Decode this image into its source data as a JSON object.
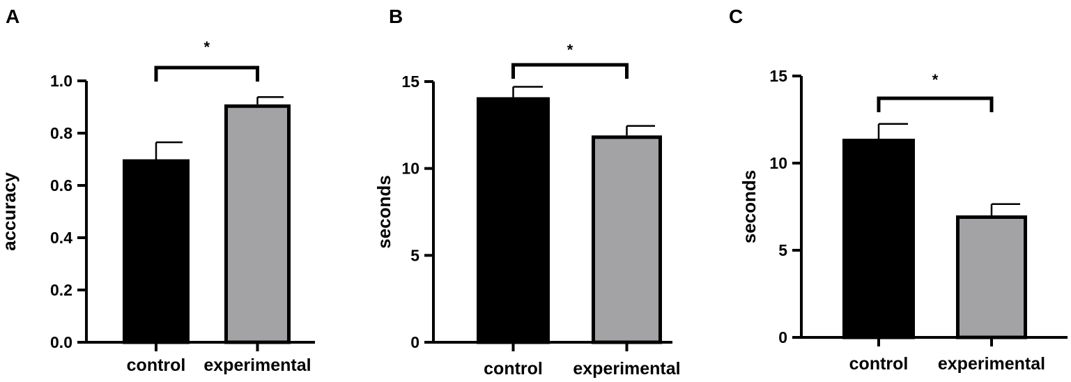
{
  "chart_data": [
    {
      "panel": "A",
      "type": "bar",
      "categories": [
        "control",
        "experimental"
      ],
      "values": [
        0.7,
        0.91
      ],
      "errors": [
        0.065,
        0.028
      ],
      "ylabel": "accuracy",
      "xlabel": "",
      "ylim": [
        0,
        1.0
      ],
      "yticks": [
        "0.0",
        "0.2",
        "0.4",
        "0.6",
        "0.8",
        "1.0"
      ],
      "bar_colors": [
        "#000000",
        "#a3a3a6"
      ],
      "significance": "*"
    },
    {
      "panel": "B",
      "type": "bar",
      "categories": [
        "control",
        "experimental"
      ],
      "values": [
        14.1,
        11.9
      ],
      "errors": [
        0.6,
        0.55
      ],
      "ylabel": "seconds",
      "xlabel": "",
      "ylim": [
        0,
        15
      ],
      "yticks": [
        "0",
        "5",
        "10",
        "15"
      ],
      "bar_colors": [
        "#000000",
        "#a3a3a6"
      ],
      "significance": "*"
    },
    {
      "panel": "C",
      "type": "bar",
      "categories": [
        "control",
        "experimental"
      ],
      "values": [
        11.4,
        7.0
      ],
      "errors": [
        0.85,
        0.65
      ],
      "ylabel": "seconds",
      "xlabel": "",
      "ylim": [
        0,
        15
      ],
      "yticks": [
        "0",
        "5",
        "10",
        "15"
      ],
      "bar_colors": [
        "#000000",
        "#a3a3a6"
      ],
      "significance": "*"
    }
  ]
}
